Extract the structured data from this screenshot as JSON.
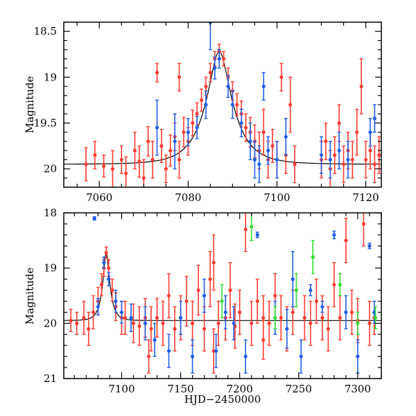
{
  "chart_data": [
    {
      "type": "scatter",
      "panel": "top",
      "title": "",
      "xlabel": "",
      "ylabel": "Magnitude",
      "xlim": [
        7052,
        7123.5
      ],
      "ylim": [
        20.2,
        18.4
      ],
      "y_inverted": true,
      "xticks": [
        7060,
        7080,
        7100,
        7120
      ],
      "xtick_labels": [
        "7060",
        "7080",
        "7100",
        "7120"
      ],
      "yticks": [
        18.5,
        19,
        19.5,
        20
      ],
      "ytick_labels": [
        "18.5",
        "19",
        "19.5",
        "20"
      ],
      "grid": false,
      "legend": "none",
      "model": {
        "name": "microlensing fit",
        "t0": 7087,
        "baseline": 19.95,
        "peak": 18.72,
        "tE": 6.0,
        "color": "#000000"
      },
      "series": [
        {
          "name": "red",
          "color": "#ff3b2f",
          "points": [
            [
              7057,
              19.95,
              0.18
            ],
            [
              7059,
              19.85,
              0.15
            ],
            [
              7061,
              19.97,
              0.12
            ],
            [
              7063,
              20.0,
              0.2
            ],
            [
              7065,
              19.9,
              0.15
            ],
            [
              7066,
              20.05,
              0.18
            ],
            [
              7068,
              19.8,
              0.2
            ],
            [
              7069,
              19.92,
              0.17
            ],
            [
              7070,
              20.1,
              0.2
            ],
            [
              7071,
              19.7,
              0.16
            ],
            [
              7072,
              19.9,
              0.2
            ],
            [
              7074,
              19.75,
              0.18
            ],
            [
              7075,
              20.0,
              0.15
            ],
            [
              7076,
              19.8,
              0.17
            ],
            [
              7077,
              19.65,
              0.15
            ],
            [
              7078,
              19.9,
              0.2
            ],
            [
              7079,
              19.6,
              0.16
            ],
            [
              7080,
              19.7,
              0.15
            ],
            [
              7081,
              19.5,
              0.14
            ],
            [
              7082,
              19.4,
              0.12
            ],
            [
              7083,
              19.25,
              0.12
            ],
            [
              7084,
              19.1,
              0.1
            ],
            [
              7085,
              18.95,
              0.1
            ],
            [
              7086,
              18.8,
              0.08
            ],
            [
              7087,
              18.72,
              0.08
            ],
            [
              7088,
              18.8,
              0.08
            ],
            [
              7089,
              19.0,
              0.1
            ],
            [
              7090,
              19.15,
              0.1
            ],
            [
              7091,
              19.3,
              0.12
            ],
            [
              7092,
              19.4,
              0.14
            ],
            [
              7093,
              19.55,
              0.15
            ],
            [
              7094,
              19.6,
              0.16
            ],
            [
              7095,
              19.7,
              0.18
            ],
            [
              7096,
              19.8,
              0.2
            ],
            [
              7097,
              19.6,
              0.25
            ],
            [
              7098,
              19.9,
              0.2
            ],
            [
              7099,
              19.75,
              0.18
            ],
            [
              7100,
              19.9,
              0.2
            ],
            [
              7101,
              19.0,
              0.15
            ],
            [
              7102,
              19.85,
              0.2
            ],
            [
              7103,
              19.3,
              0.3
            ],
            [
              7104,
              19.95,
              0.2
            ],
            [
              7110,
              19.9,
              0.2
            ],
            [
              7111,
              19.7,
              0.2
            ],
            [
              7112,
              20.0,
              0.2
            ],
            [
              7113,
              19.85,
              0.2
            ],
            [
              7114,
              19.5,
              0.2
            ],
            [
              7115,
              19.95,
              0.2
            ],
            [
              7116,
              19.8,
              0.2
            ],
            [
              7117,
              19.9,
              0.2
            ],
            [
              7118,
              19.6,
              0.25
            ],
            [
              7119,
              19.1,
              0.3
            ],
            [
              7120,
              19.9,
              0.2
            ],
            [
              7121,
              19.8,
              0.2
            ],
            [
              7122,
              19.95,
              0.2
            ],
            [
              7123,
              19.85,
              0.2
            ],
            [
              7073,
              18.95,
              0.1
            ],
            [
              7078,
              19.0,
              0.15
            ]
          ]
        },
        {
          "name": "blue",
          "color": "#1e5ee6",
          "points": [
            [
              7073,
              19.55,
              0.3
            ],
            [
              7077,
              19.7,
              0.3
            ],
            [
              7080,
              19.6,
              0.15
            ],
            [
              7082,
              19.55,
              0.12
            ],
            [
              7084,
              19.3,
              0.15
            ],
            [
              7085,
              18.4,
              0.3
            ],
            [
              7086,
              18.9,
              0.12
            ],
            [
              7087,
              18.8,
              0.1
            ],
            [
              7089,
              19.1,
              0.12
            ],
            [
              7090,
              19.3,
              0.15
            ],
            [
              7092,
              19.5,
              0.15
            ],
            [
              7094,
              19.7,
              0.2
            ],
            [
              7095,
              19.9,
              0.2
            ],
            [
              7096,
              19.95,
              0.2
            ],
            [
              7097,
              19.1,
              0.15
            ],
            [
              7098,
              19.8,
              0.15
            ],
            [
              7100,
              19.9,
              0.2
            ],
            [
              7102,
              19.65,
              0.2
            ],
            [
              7110,
              19.85,
              0.2
            ],
            [
              7112,
              19.9,
              0.2
            ],
            [
              7114,
              19.8,
              0.2
            ],
            [
              7116,
              19.9,
              0.2
            ],
            [
              7121,
              19.6,
              0.15
            ],
            [
              7122,
              19.45,
              0.15
            ]
          ]
        }
      ]
    },
    {
      "type": "scatter",
      "panel": "bottom",
      "title": "",
      "xlabel": "HJD−2450000",
      "ylabel": "Magnitude",
      "xlim": [
        7051,
        7320
      ],
      "ylim": [
        21,
        18
      ],
      "y_inverted": true,
      "xticks": [
        7100,
        7150,
        7200,
        7250,
        7300
      ],
      "xtick_labels": [
        "7100",
        "7150",
        "7200",
        "7250",
        "7300"
      ],
      "yticks": [
        18,
        19,
        20,
        21
      ],
      "ytick_labels": [
        "18",
        "19",
        "20",
        "21"
      ],
      "grid": false,
      "legend": "none",
      "model": {
        "name": "microlensing fit",
        "t0": 7087,
        "baseline": 19.95,
        "peak": 18.72,
        "tE": 6.0,
        "color": "#000000"
      },
      "series": [
        {
          "name": "red",
          "color": "#ff3b2f",
          "points": [
            [
              7057,
              19.95,
              0.2
            ],
            [
              7062,
              20.0,
              0.2
            ],
            [
              7068,
              19.9,
              0.3
            ],
            [
              7072,
              20.1,
              0.3
            ],
            [
              7076,
              19.8,
              0.3
            ],
            [
              7080,
              19.6,
              0.25
            ],
            [
              7083,
              19.3,
              0.2
            ],
            [
              7085,
              19.0,
              0.15
            ],
            [
              7087,
              18.72,
              0.1
            ],
            [
              7089,
              19.0,
              0.15
            ],
            [
              7092,
              19.4,
              0.2
            ],
            [
              7095,
              19.7,
              0.25
            ],
            [
              7100,
              19.9,
              0.3
            ],
            [
              7103,
              19.9,
              0.3
            ],
            [
              7110,
              20.0,
              0.35
            ],
            [
              7115,
              20.05,
              0.35
            ],
            [
              7120,
              19.9,
              0.35
            ],
            [
              7125,
              20.1,
              0.4
            ],
            [
              7130,
              19.9,
              0.35
            ],
            [
              7135,
              20.0,
              0.4
            ],
            [
              7140,
              19.5,
              0.4
            ],
            [
              7145,
              20.1,
              0.4
            ],
            [
              7150,
              19.9,
              0.4
            ],
            [
              7155,
              19.6,
              0.45
            ],
            [
              7160,
              20.0,
              0.4
            ],
            [
              7165,
              19.4,
              0.45
            ],
            [
              7170,
              20.1,
              0.4
            ],
            [
              7175,
              19.2,
              0.5
            ],
            [
              7178,
              18.9,
              0.5
            ],
            [
              7182,
              20.0,
              0.4
            ],
            [
              7188,
              19.9,
              0.4
            ],
            [
              7192,
              19.4,
              0.5
            ],
            [
              7196,
              20.05,
              0.4
            ],
            [
              7200,
              19.8,
              0.4
            ],
            [
              7205,
              18.3,
              0.4
            ],
            [
              7210,
              20.0,
              0.4
            ],
            [
              7215,
              19.6,
              0.4
            ],
            [
              7220,
              19.9,
              0.4
            ],
            [
              7225,
              20.0,
              0.4
            ],
            [
              7230,
              19.5,
              0.4
            ],
            [
              7235,
              19.9,
              0.4
            ],
            [
              7240,
              20.1,
              0.4
            ],
            [
              7245,
              19.8,
              0.4
            ],
            [
              7255,
              19.9,
              0.4
            ],
            [
              7260,
              20.0,
              0.4
            ],
            [
              7265,
              19.6,
              0.4
            ],
            [
              7270,
              19.9,
              0.4
            ],
            [
              7275,
              20.1,
              0.4
            ],
            [
              7280,
              19.3,
              0.4
            ],
            [
              7285,
              19.9,
              0.4
            ],
            [
              7290,
              18.5,
              0.4
            ],
            [
              7295,
              19.8,
              0.4
            ],
            [
              7300,
              19.95,
              0.4
            ],
            [
              7305,
              18.2,
              0.4
            ],
            [
              7310,
              20.0,
              0.4
            ],
            [
              7314,
              19.9,
              0.3
            ],
            [
              7123,
              20.6,
              0.3
            ],
            [
              7178,
              20.5,
              0.4
            ],
            [
              7220,
              20.3,
              0.35
            ]
          ]
        },
        {
          "name": "blue",
          "color": "#1e5ee6",
          "points": [
            [
              7077,
              18.1,
              0.03
            ],
            [
              7080,
              19.7,
              0.15
            ],
            [
              7085,
              18.9,
              0.1
            ],
            [
              7089,
              19.2,
              0.12
            ],
            [
              7095,
              19.6,
              0.2
            ],
            [
              7100,
              19.8,
              0.2
            ],
            [
              7108,
              19.9,
              0.25
            ],
            [
              7120,
              20.0,
              0.3
            ],
            [
              7128,
              20.3,
              0.3
            ],
            [
              7140,
              20.5,
              0.3
            ],
            [
              7150,
              19.9,
              0.3
            ],
            [
              7160,
              20.6,
              0.3
            ],
            [
              7170,
              19.5,
              0.3
            ],
            [
              7180,
              20.5,
              0.3
            ],
            [
              7188,
              19.8,
              0.3
            ],
            [
              7195,
              20.0,
              0.3
            ],
            [
              7205,
              20.6,
              0.3
            ],
            [
              7215,
              18.4,
              0.05
            ],
            [
              7230,
              19.9,
              0.3
            ],
            [
              7240,
              20.1,
              0.35
            ],
            [
              7245,
              19.2,
              0.5
            ],
            [
              7252,
              20.6,
              0.3
            ],
            [
              7260,
              19.4,
              0.1
            ],
            [
              7270,
              19.7,
              0.1
            ],
            [
              7280,
              18.4,
              0.07
            ],
            [
              7290,
              19.8,
              0.3
            ],
            [
              7300,
              20.6,
              0.3
            ],
            [
              7310,
              18.6,
              0.05
            ],
            [
              7314,
              19.8,
              0.2
            ]
          ]
        },
        {
          "name": "green",
          "color": "#33dd33",
          "points": [
            [
              7185,
              19.6,
              0.3
            ],
            [
              7210,
              18.25,
              0.25
            ],
            [
              7230,
              19.9,
              0.2
            ],
            [
              7248,
              19.4,
              0.3
            ],
            [
              7262,
              18.8,
              0.3
            ],
            [
              7285,
              19.3,
              0.2
            ],
            [
              7300,
              20.0,
              0.2
            ],
            [
              7315,
              19.9,
              0.2
            ]
          ]
        }
      ]
    }
  ]
}
